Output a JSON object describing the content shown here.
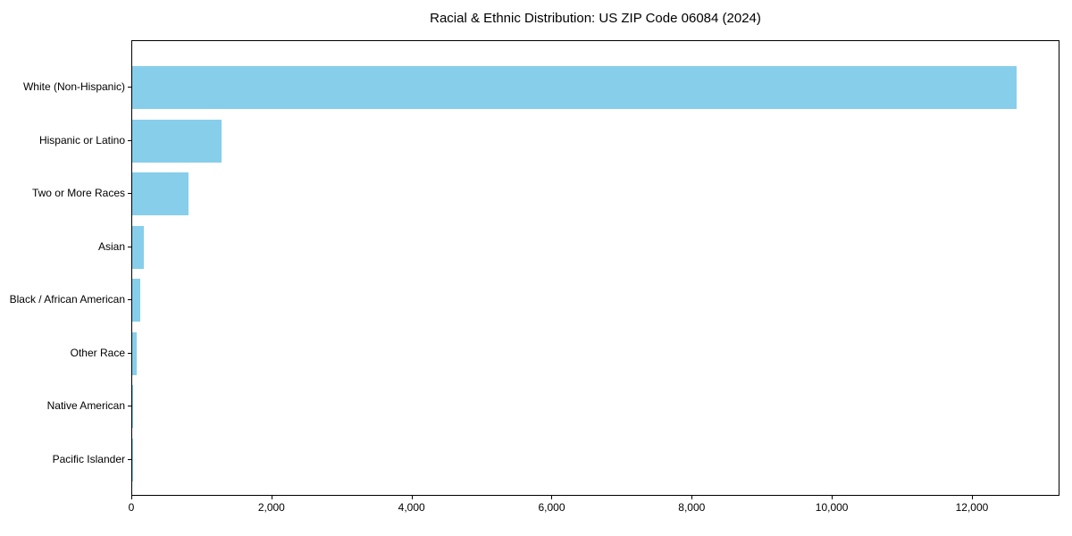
{
  "chart_data": {
    "type": "bar",
    "orientation": "horizontal",
    "title": "Racial & Ethnic Distribution: US ZIP Code 06084 (2024)",
    "categories": [
      "White (Non-Hispanic)",
      "Hispanic or Latino",
      "Two or More Races",
      "Asian",
      "Black / African American",
      "Other Race",
      "Native American",
      "Pacific Islander"
    ],
    "values": [
      12620,
      1270,
      800,
      170,
      115,
      60,
      12,
      3
    ],
    "xlabel": "",
    "ylabel": "",
    "xlim": [
      0,
      13250
    ],
    "xticks": [
      0,
      2000,
      4000,
      6000,
      8000,
      10000,
      12000
    ],
    "xtick_labels": [
      "0",
      "2,000",
      "4,000",
      "6,000",
      "8,000",
      "10,000",
      "12,000"
    ],
    "bar_color": "#87CEEB",
    "axis_color": "#000000",
    "text_color": "#000000",
    "grid": false,
    "legend": null,
    "category_axis": "y",
    "first_category_position": "top"
  }
}
